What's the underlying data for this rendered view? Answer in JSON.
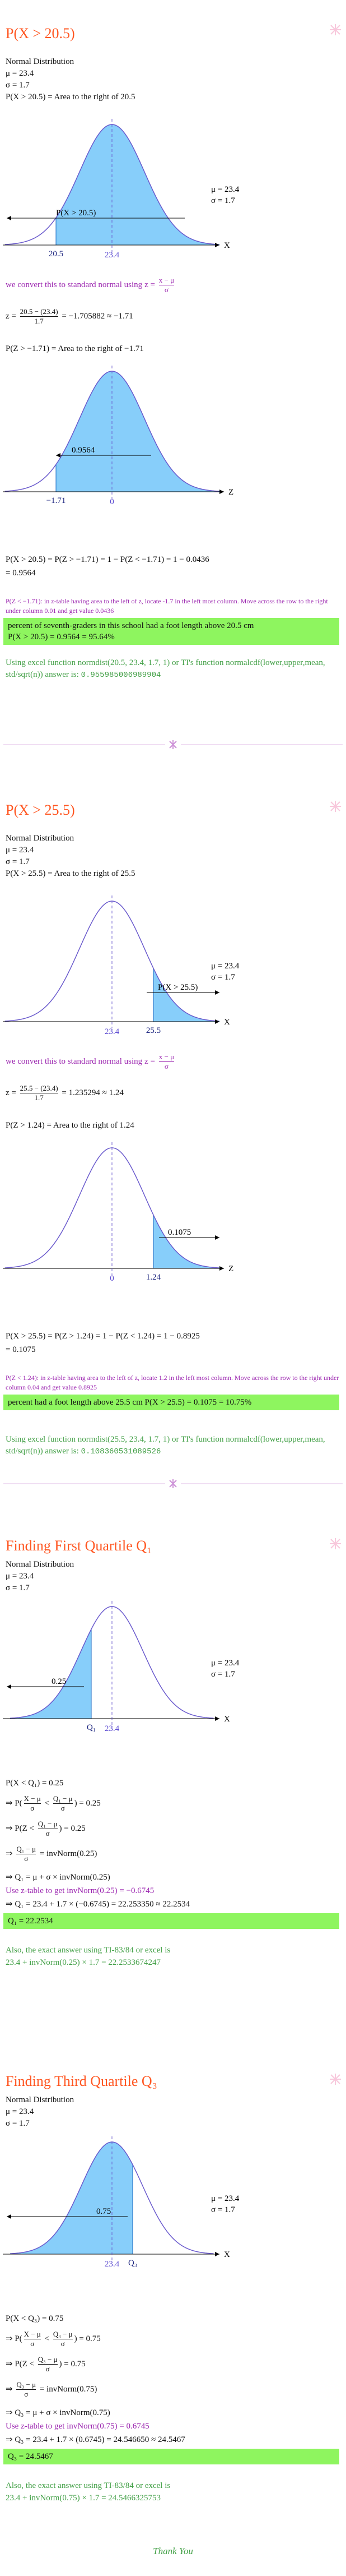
{
  "part1": {
    "title": "P(X > 20.5)",
    "given": [
      "Normal Distribution",
      "μ = 23.4",
      "σ = 1.7"
    ],
    "area": "P(X > 20.5) = Area to the right of 20.5",
    "graph1": {
      "region": "P(X > 20.5)",
      "mu": "μ = 23.4",
      "sigma": "σ = 1.7",
      "cut": "20.5",
      "mean": "23.4",
      "axis": "X"
    },
    "convert": "we convert this to standard normal using",
    "formula": [
      "z = ",
      {
        "num": "x − μ",
        "den": "σ"
      }
    ],
    "z_calc": [
      "z = ",
      {
        "num": "20.5 − (23.4)",
        "den": "1.7"
      },
      " = −1.705882 ≈ −1.71"
    ],
    "z_area": "P(Z > −1.71) = Area to the right of −1.71",
    "graph2": {
      "region": "0.9564",
      "cut": "−1.71",
      "mean": "0",
      "axis": "Z"
    },
    "result": [
      "P(X > 20.5) = P(Z > −1.71) = 1 − P(Z < −1.71) = 1 − 0.0436",
      "= 0.9564"
    ],
    "note": "P(Z < −1.71): in z-table having area to the left of z, locate -1.7 in the left most column. Move across the row to the right under column 0.01 and get value 0.0436",
    "answer": [
      "percent of seventh-graders in this school had a foot length above 20.5 cm",
      "P(X > 20.5) = 0.9564 = 95.64%"
    ],
    "excel": "Using excel function normdist(20.5, 23.4, 1.7, 1) or TI's function normalcdf(lower,upper,mean, std/sqrt(n)) answer is:",
    "excel_value": "0.955985006989904"
  },
  "part2": {
    "title": "P(X > 25.5)",
    "given": [
      "Normal Distribution",
      "μ = 23.4",
      "σ = 1.7"
    ],
    "area": "P(X > 25.5) = Area to the right of 25.5",
    "graph1": {
      "region": "P(X > 25.5)",
      "mu": "μ = 23.4",
      "sigma": "σ = 1.7",
      "cut": "25.5",
      "mean": "23.4",
      "axis": "X"
    },
    "convert": "we convert this to standard normal using",
    "formula": [
      "z = ",
      {
        "num": "x − μ",
        "den": "σ"
      }
    ],
    "z_calc": [
      "z = ",
      {
        "num": "25.5 − (23.4)",
        "den": "1.7"
      },
      " = 1.235294 ≈ 1.24"
    ],
    "z_area": "P(Z > 1.24) = Area to the right of 1.24",
    "graph2": {
      "region": "0.1075",
      "cut": "1.24",
      "mean": "0",
      "axis": "Z"
    },
    "result": [
      "P(X > 25.5) = P(Z > 1.24) = 1 − P(Z < 1.24) = 1 − 0.8925",
      "= 0.1075"
    ],
    "note": "P(Z < 1.24): in z-table having area to the left of z, locate 1.2 in the left most column. Move across the row to the right under column 0.04 and get value 0.8925",
    "answer": [
      "percent had a foot length above 25.5 cm P(X > 25.5) = 0.1075 = 10.75%"
    ],
    "excel": "Using excel function normdist(25.5, 23.4, 1.7, 1) or TI's function normalcdf(lower,upper,mean, std/sqrt(n)) answer is:",
    "excel_value": "0.108360531089526"
  },
  "part3": {
    "title": "Finding First Quartile Q₁",
    "given": [
      "Normal Distribution",
      "μ = 23.4",
      "σ = 1.7"
    ],
    "graph": {
      "region": "0.25",
      "mu": "μ = 23.4",
      "sigma": "σ = 1.7",
      "cut": "Q₁",
      "mean": "23.4",
      "axis": "X"
    },
    "steps": [
      [
        "P(X < Q₁) = 0.25"
      ],
      [
        "⇒ P(",
        {
          "num": "X − μ",
          "den": "σ"
        },
        " < ",
        {
          "num": "Q₁ − μ",
          "den": "σ"
        },
        ") = 0.25"
      ],
      [
        "⇒ P(Z < ",
        {
          "num": "Q₁ − μ",
          "den": "σ"
        },
        ") = 0.25"
      ],
      [
        "⇒ ",
        {
          "num": "Q₁ − μ",
          "den": "σ"
        },
        " = invNorm(0.25)"
      ],
      [
        "⇒ Q₁ = μ + σ × invNorm(0.25)"
      ]
    ],
    "ztable": "Use z-table to get invNorm(0.25) = −0.6745",
    "final": "⇒ Q₁ = 23.4 + 1.7 × (−0.6745) = 22.253350 ≈ 22.2534",
    "answer": "Q₁ = 22.2534",
    "exact": "Also, the exact answer using TI-83/84 or excel is",
    "exact_value": "23.4 + invNorm(0.25) × 1.7 = 22.2533674247"
  },
  "part4": {
    "title": "Finding Third Quartile Q₃",
    "given": [
      "Normal Distribution",
      "μ = 23.4",
      "σ = 1.7"
    ],
    "graph": {
      "region": "0.75",
      "mu": "μ = 23.4",
      "sigma": "σ = 1.7",
      "cut": "Q₃",
      "mean": "23.4",
      "axis": "X"
    },
    "steps": [
      [
        "P(X < Q₃) = 0.75"
      ],
      [
        "⇒ P(",
        {
          "num": "X − μ",
          "den": "σ"
        },
        " < ",
        {
          "num": "Q₃ − μ",
          "den": "σ"
        },
        ") = 0.75"
      ],
      [
        "⇒ P(Z < ",
        {
          "num": "Q₃ − μ",
          "den": "σ"
        },
        ") = 0.75"
      ],
      [
        "⇒ ",
        {
          "num": "Q₃ − μ",
          "den": "σ"
        },
        " = invNorm(0.75)"
      ],
      [
        "⇒ Q₃ = μ + σ × invNorm(0.75)"
      ]
    ],
    "ztable": "Use z-table to get invNorm(0.75) = 0.6745",
    "final": "⇒ Q₃ = 23.4 + 1.7 × (0.6745) = 24.546650 ≈ 24.5467",
    "answer": "Q₃ = 24.5467",
    "exact": "Also, the exact answer using TI-83/84 or excel is",
    "exact_value": "23.4 + invNorm(0.75) × 1.7 = 24.5466325753"
  },
  "closing": "Thank You"
}
